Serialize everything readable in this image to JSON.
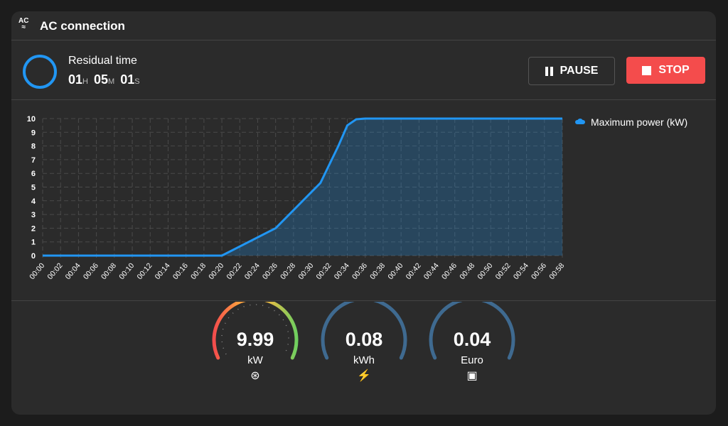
{
  "header": {
    "title": "AC connection",
    "icon": "ac-icon",
    "icon_text": "AC"
  },
  "residual": {
    "label": "Residual time",
    "hours": "01",
    "h": "H",
    "minutes": "05",
    "m": "M",
    "seconds": "01",
    "s": "S"
  },
  "buttons": {
    "pause": "PAUSE",
    "stop": "STOP"
  },
  "colors": {
    "accent": "#2196f3",
    "stop": "#f44c4c",
    "gauge_track": "#3f6a90"
  },
  "chart_data": {
    "type": "area",
    "legend": "Maximum power (kW)",
    "legend_position": "right",
    "ylim": [
      0,
      10
    ],
    "yticks": [
      0,
      1,
      2,
      3,
      4,
      5,
      6,
      7,
      8,
      9,
      10
    ],
    "xticks": [
      "00:00",
      "00:02",
      "00:04",
      "00:06",
      "00:08",
      "00:10",
      "00:12",
      "00:14",
      "00:16",
      "00:18",
      "00:20",
      "00:22",
      "00:24",
      "00:26",
      "00:28",
      "00:30",
      "00:32",
      "00:34",
      "00:36",
      "00:38",
      "00:40",
      "00:42",
      "00:44",
      "00:46",
      "00:48",
      "00:50",
      "00:52",
      "00:54",
      "00:56",
      "00:58"
    ],
    "x_minutes": [
      0,
      20,
      26,
      31,
      33,
      34,
      35,
      36,
      58
    ],
    "values": [
      0,
      0,
      2,
      5.3,
      8,
      9.5,
      9.95,
      10,
      10
    ]
  },
  "gauges": [
    {
      "value": "9.99",
      "unit": "kW",
      "icon": "power-meter-icon",
      "fraction": 1.0
    },
    {
      "value": "0.08",
      "unit": "kWh",
      "icon": "energy-flash-icon"
    },
    {
      "value": "0.04",
      "unit": "Euro",
      "icon": "cash-icon"
    }
  ]
}
